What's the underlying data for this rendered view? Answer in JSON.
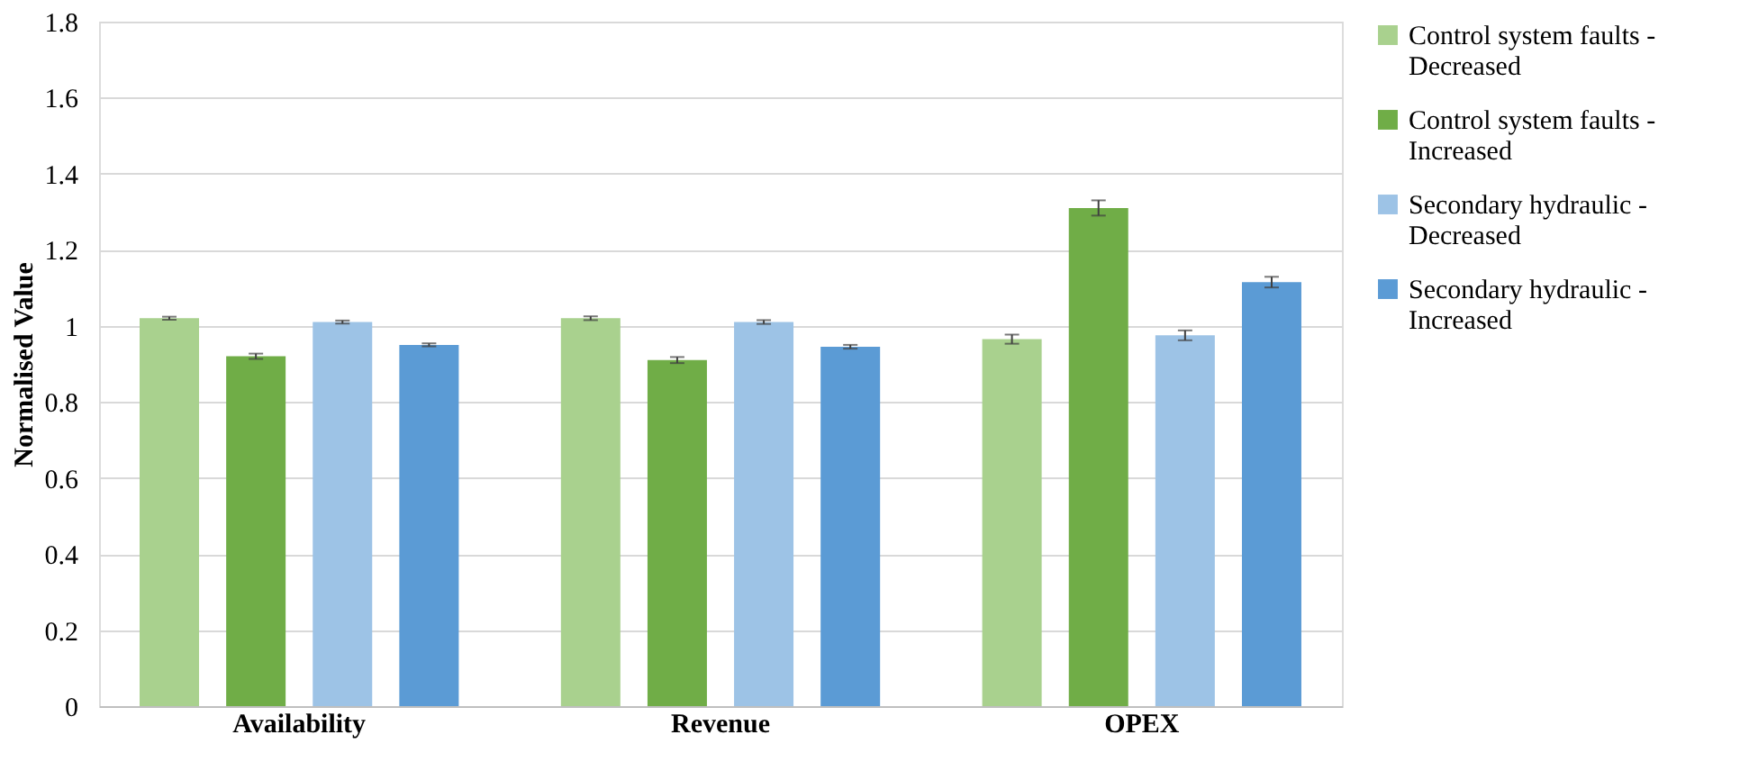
{
  "chart_data": {
    "type": "bar",
    "ylabel": "Normalised Value",
    "categories": [
      "Availability",
      "Revenue",
      "OPEX"
    ],
    "series": [
      {
        "name": "Control system faults - Decreased",
        "color": "#a9d18e",
        "values": [
          1.02,
          1.02,
          0.965
        ],
        "errors": [
          0.004,
          0.005,
          0.012
        ]
      },
      {
        "name": "Control system faults - Increased",
        "color": "#70ad47",
        "values": [
          0.92,
          0.91,
          1.31
        ],
        "errors": [
          0.007,
          0.008,
          0.02
        ]
      },
      {
        "name": "Secondary hydraulic - Decreased",
        "color": "#9dc3e6",
        "values": [
          1.01,
          1.01,
          0.975
        ],
        "errors": [
          0.004,
          0.005,
          0.013
        ]
      },
      {
        "name": "Secondary hydraulic - Increased",
        "color": "#5b9bd5",
        "values": [
          0.95,
          0.945,
          1.115
        ],
        "errors": [
          0.004,
          0.005,
          0.014
        ]
      }
    ],
    "ylim": [
      0,
      1.8
    ],
    "yticks": [
      0,
      0.2,
      0.4,
      0.6,
      0.8,
      1,
      1.2,
      1.4,
      1.6,
      1.8
    ],
    "grid": "y",
    "legend": "right"
  }
}
